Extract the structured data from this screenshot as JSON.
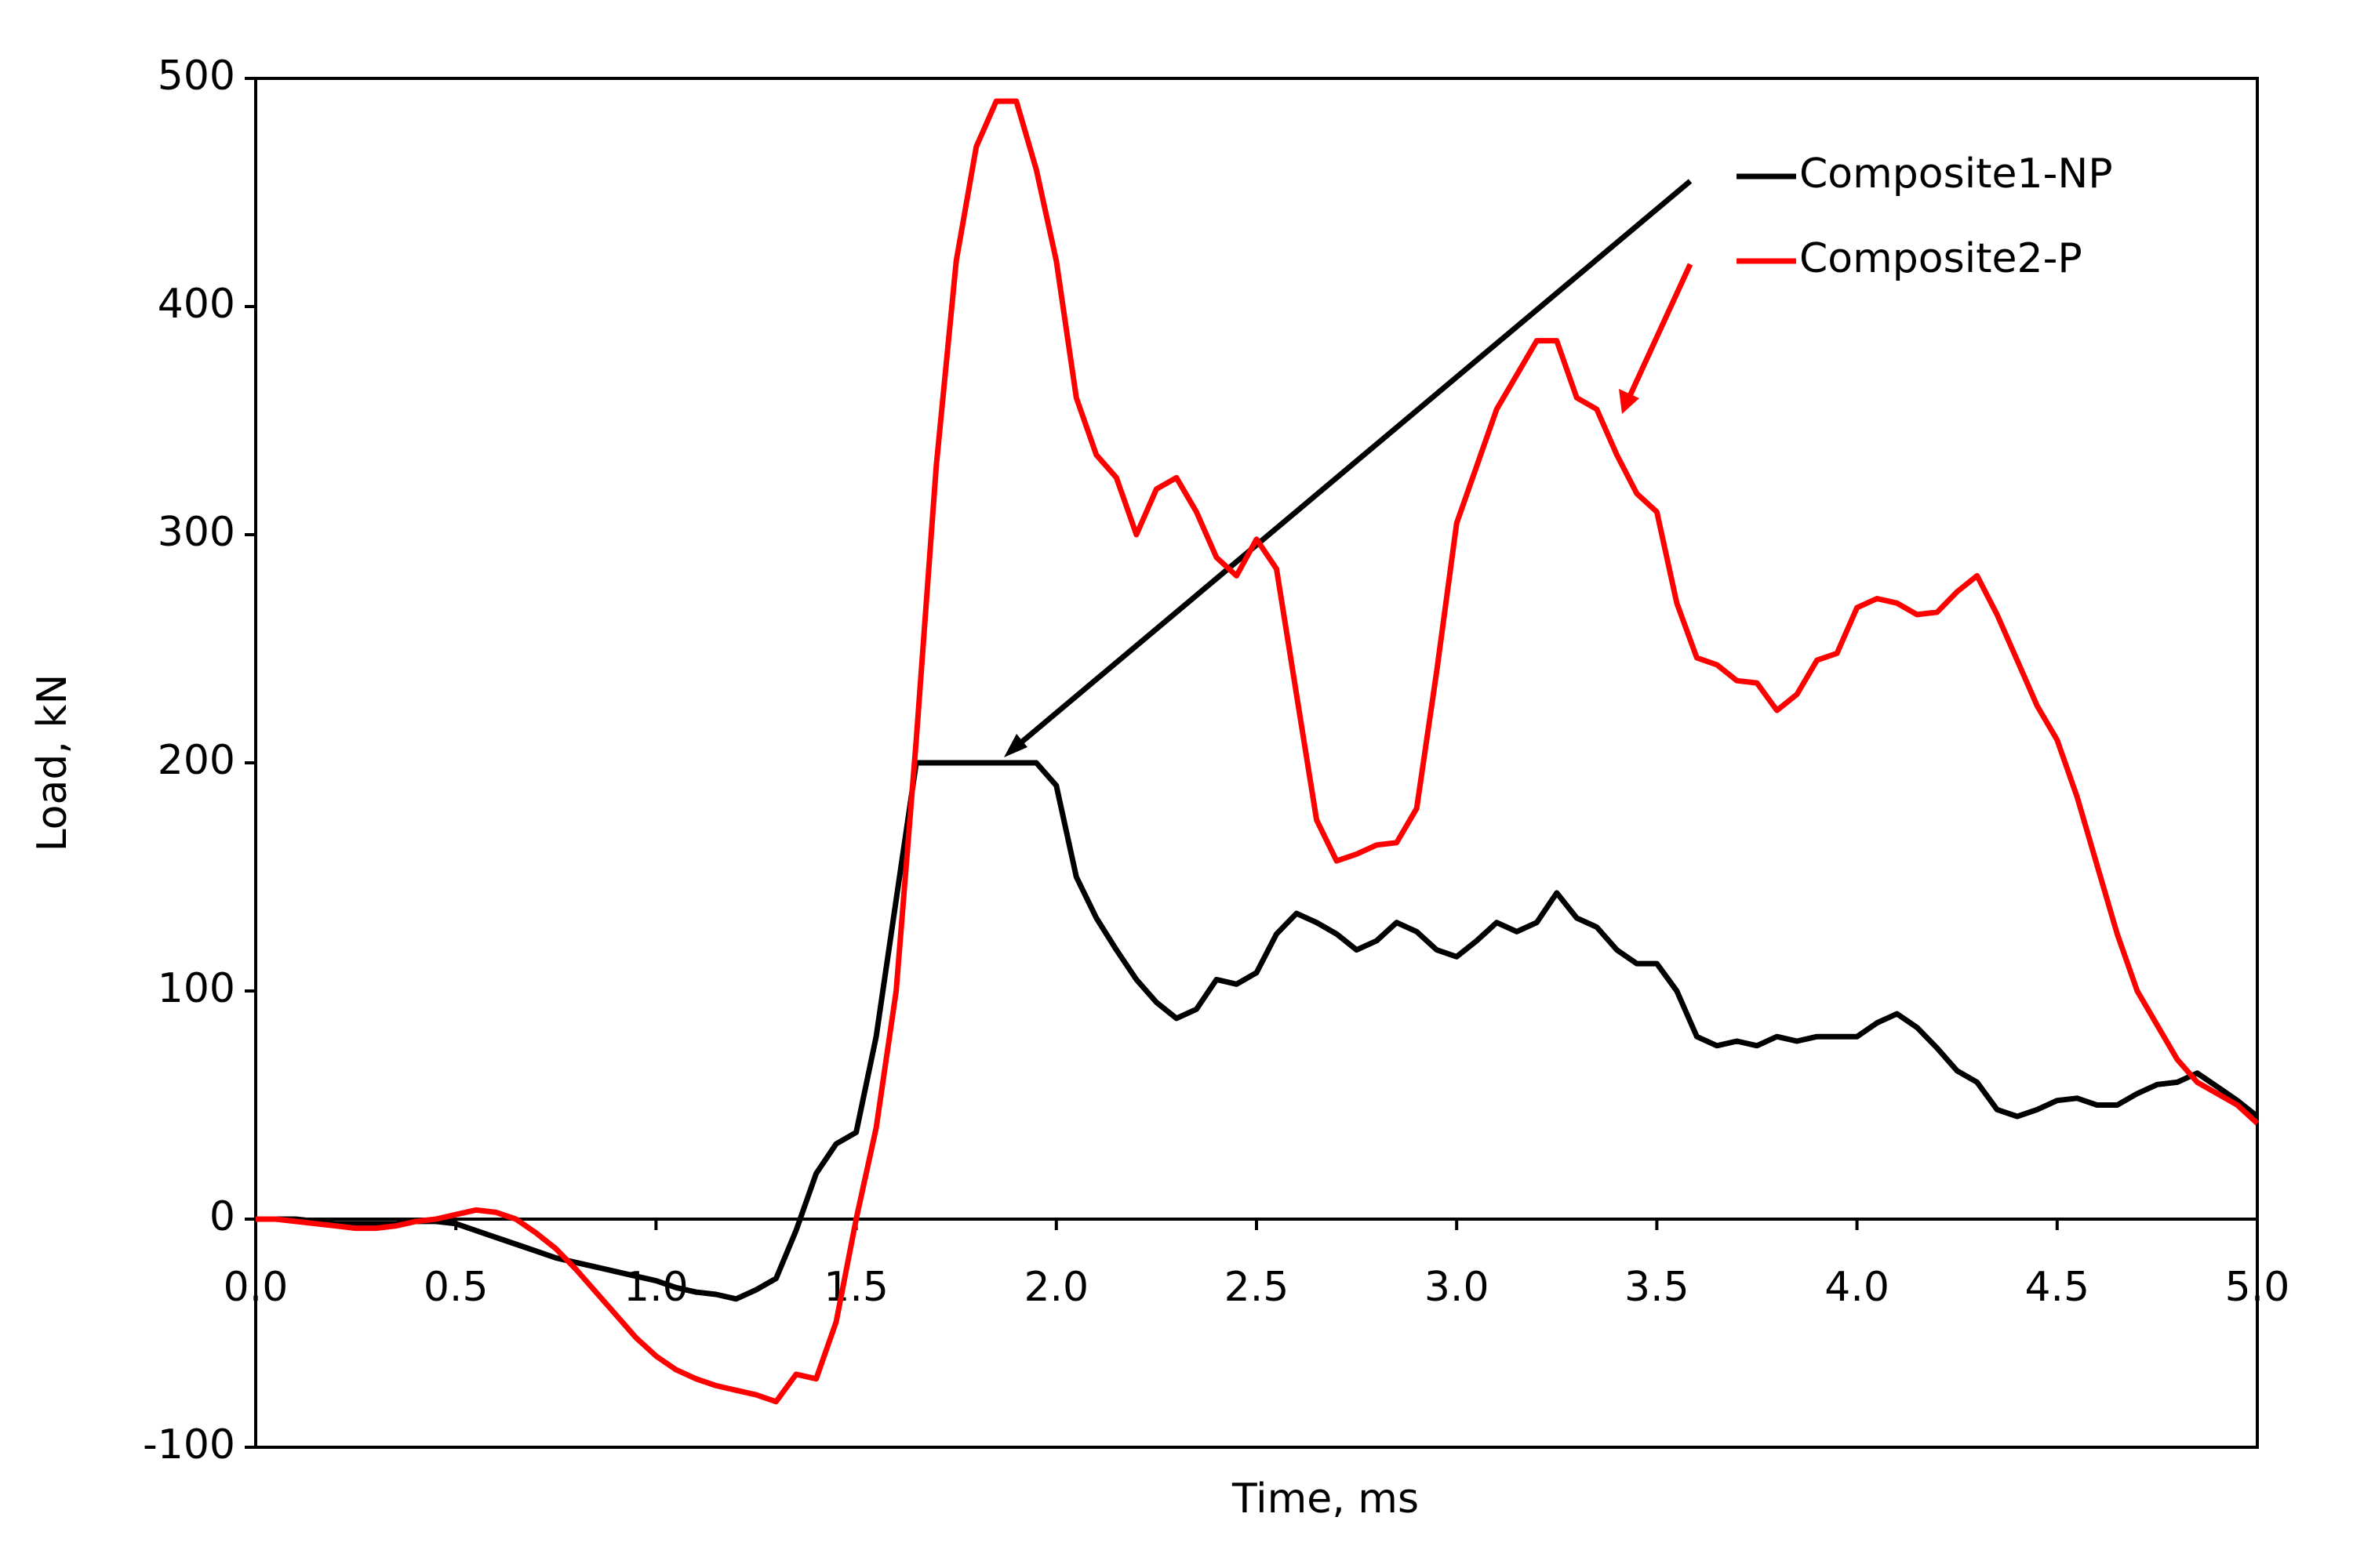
{
  "chart_data": {
    "type": "line",
    "xlabel": "Time, ms",
    "ylabel": "Load, kN",
    "x": [
      0,
      0.05,
      0.1,
      0.15,
      0.2,
      0.25,
      0.3,
      0.35,
      0.4,
      0.45,
      0.5,
      0.55,
      0.6,
      0.65,
      0.7,
      0.75,
      0.8,
      0.85,
      0.9,
      0.95,
      1,
      1.05,
      1.1,
      1.15,
      1.2,
      1.25,
      1.3,
      1.35,
      1.4,
      1.45,
      1.5,
      1.55,
      1.6,
      1.65,
      1.7,
      1.75,
      1.8,
      1.85,
      1.9,
      1.95,
      2,
      2.05,
      2.1,
      2.15,
      2.2,
      2.25,
      2.3,
      2.35,
      2.4,
      2.45,
      2.5,
      2.55,
      2.6,
      2.65,
      2.7,
      2.75,
      2.8,
      2.85,
      2.9,
      2.95,
      3,
      3.05,
      3.1,
      3.15,
      3.2,
      3.25,
      3.3,
      3.35,
      3.4,
      3.45,
      3.5,
      3.55,
      3.6,
      3.65,
      3.7,
      3.75,
      3.8,
      3.85,
      3.9,
      3.95,
      4,
      4.05,
      4.1,
      4.15,
      4.2,
      4.25,
      4.3,
      4.35,
      4.4,
      4.45,
      4.5,
      4.55,
      4.6,
      4.65,
      4.7,
      4.75,
      4.8,
      4.85,
      4.9,
      4.95,
      5
    ],
    "series": [
      {
        "name": "Composite1-NP",
        "color": "#000000",
        "values": [
          0,
          0,
          0,
          -1,
          -2,
          -2,
          -2,
          -2,
          -1,
          -1,
          -2,
          -5,
          -8,
          -11,
          -14,
          -17,
          -19,
          -21,
          -23,
          -25,
          -27,
          -30,
          -32,
          -33,
          -35,
          -31,
          -26,
          -5,
          20,
          33,
          38,
          80,
          140,
          200,
          200,
          200,
          200,
          200,
          200,
          200,
          190,
          150,
          132,
          118,
          105,
          95,
          88,
          92,
          105,
          103,
          108,
          125,
          134,
          130,
          125,
          118,
          122,
          130,
          126,
          118,
          115,
          122,
          130,
          126,
          130,
          143,
          132,
          128,
          118,
          112,
          112,
          100,
          80,
          76,
          78,
          76,
          80,
          78,
          80,
          80,
          80,
          86,
          90,
          84,
          75,
          65,
          60,
          48,
          45,
          48,
          52,
          53,
          50,
          50,
          55,
          59,
          60,
          64,
          58,
          52,
          45
        ]
      },
      {
        "name": "Composite2-P",
        "color": "#ff0000",
        "values": [
          0,
          0,
          -1,
          -2,
          -3,
          -4,
          -4,
          -3,
          -1,
          0,
          2,
          4,
          3,
          0,
          -6,
          -13,
          -22,
          -32,
          -42,
          -52,
          -60,
          -66,
          -70,
          -73,
          -75,
          -77,
          -80,
          -68,
          -70,
          -45,
          0,
          40,
          100,
          210,
          330,
          420,
          470,
          490,
          490,
          460,
          420,
          360,
          335,
          325,
          300,
          320,
          325,
          310,
          290,
          282,
          298,
          285,
          230,
          175,
          157,
          160,
          164,
          165,
          180,
          240,
          305,
          330,
          355,
          370,
          385,
          385,
          360,
          355,
          335,
          318,
          310,
          270,
          246,
          243,
          236,
          235,
          223,
          230,
          245,
          248,
          268,
          272,
          270,
          265,
          266,
          275,
          282,
          265,
          245,
          225,
          210,
          185,
          155,
          125,
          100,
          85,
          70,
          60,
          55,
          50,
          42
        ]
      }
    ],
    "xlim": [
      0,
      5
    ],
    "xticks": [
      {
        "value": 0,
        "label": "0.0"
      },
      {
        "value": 0.5,
        "label": "0.5"
      },
      {
        "value": 1,
        "label": "1.0"
      },
      {
        "value": 1.5,
        "label": "1.5"
      },
      {
        "value": 2,
        "label": "2.0"
      },
      {
        "value": 2.5,
        "label": "2.5"
      },
      {
        "value": 3,
        "label": "3.0"
      },
      {
        "value": 3.5,
        "label": "3.5"
      },
      {
        "value": 4,
        "label": "4.0"
      },
      {
        "value": 4.5,
        "label": "4.5"
      },
      {
        "value": 5,
        "label": "5.0"
      }
    ],
    "ylim": [
      -100,
      500
    ],
    "yticks": [
      -100,
      0,
      100,
      200,
      300,
      400,
      500
    ],
    "grid": false,
    "legend": "upper right"
  }
}
